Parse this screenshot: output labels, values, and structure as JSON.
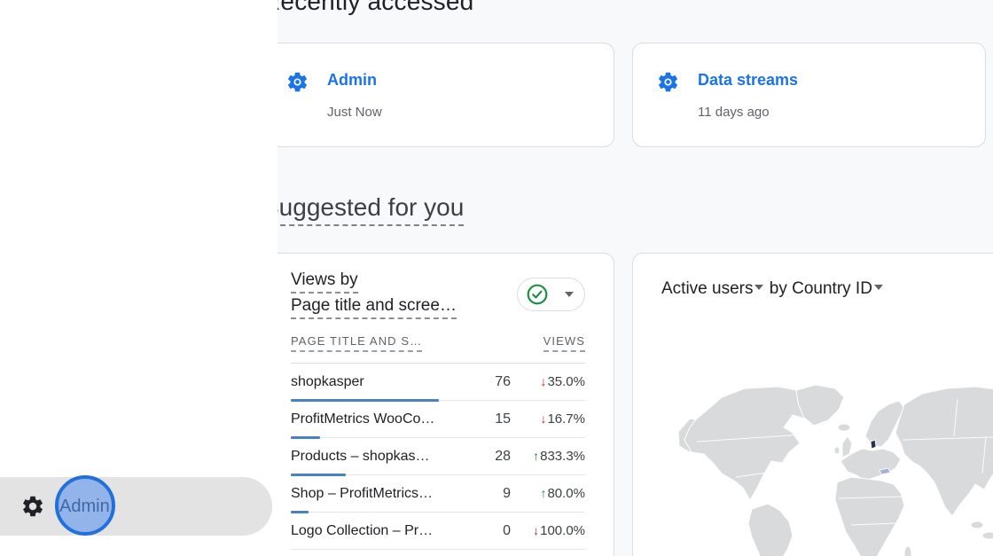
{
  "recently_accessed": {
    "title": "Recently accessed",
    "cards": [
      {
        "icon": "gear-icon",
        "title": "Admin",
        "subtitle": "Just Now"
      },
      {
        "icon": "gear-icon",
        "title": "Data streams",
        "subtitle": "11 days ago"
      }
    ]
  },
  "suggested": {
    "title": "Suggested for you",
    "views_card": {
      "title_line1": "Views by",
      "title_line2": "Page title and scree…",
      "status_button": {
        "icon": "check-circle-icon",
        "has_dropdown": true
      },
      "table": {
        "columns": [
          "PAGE TITLE AND S…",
          "VIEWS"
        ],
        "rows": [
          {
            "name": "shopkasper",
            "value": "76",
            "delta": "35.0%",
            "direction": "down"
          },
          {
            "name": "ProfitMetrics WooCo…",
            "value": "15",
            "delta": "16.7%",
            "direction": "down"
          },
          {
            "name": "Products – shopkas…",
            "value": "28",
            "delta": "833.3%",
            "direction": "up"
          },
          {
            "name": "Shop – ProfitMetrics…",
            "value": "9",
            "delta": "80.0%",
            "direction": "up"
          },
          {
            "name": "Logo Collection – Pr…",
            "value": "0",
            "delta": "100.0%",
            "direction": "down"
          }
        ]
      }
    },
    "map_card": {
      "metric": "Active users",
      "connector": "by",
      "dimension": "Country ID",
      "highlighted_country": "Denmark"
    }
  },
  "sidebar": {
    "admin_item": {
      "icon": "gear-icon",
      "label": "Admin"
    }
  },
  "icons": {
    "arrow_up": "↑",
    "arrow_down": "↓"
  },
  "colors": {
    "accent_blue": "#1a73e8",
    "bar_blue": "#4783c4",
    "positive_green": "#188038",
    "negative_red": "#c5221f",
    "map_land_gray": "#d9dadc",
    "map_highlight_navy": "#24364e"
  }
}
